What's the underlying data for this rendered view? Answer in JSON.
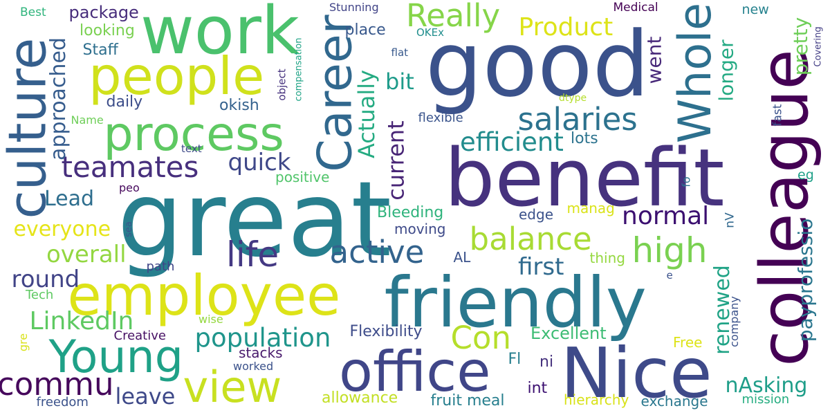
{
  "words": [
    {
      "text": "benefit",
      "color": "#46327e"
    },
    {
      "text": "great",
      "color": "#277f8e"
    },
    {
      "text": "good",
      "color": "#3b528b"
    },
    {
      "text": "friendly",
      "color": "#2a788e"
    },
    {
      "text": "colleague",
      "color": "#440154"
    },
    {
      "text": "work",
      "color": "#4ac16d"
    },
    {
      "text": "people",
      "color": "#d0e11c"
    },
    {
      "text": "employee",
      "color": "#dde318"
    },
    {
      "text": "Nice",
      "color": "#3e4a89"
    },
    {
      "text": "office",
      "color": "#404688"
    },
    {
      "text": "culture",
      "color": "#355f8d"
    },
    {
      "text": "process",
      "color": "#5ec962"
    },
    {
      "text": "Career",
      "color": "#31688e"
    },
    {
      "text": "Young",
      "color": "#1fa187"
    },
    {
      "text": "Whole",
      "color": "#2d708e"
    },
    {
      "text": "view",
      "color": "#c8e020"
    },
    {
      "text": "teamates",
      "color": "#472f7d"
    },
    {
      "text": "salaries",
      "color": "#2c728e"
    },
    {
      "text": "active",
      "color": "#33638d"
    },
    {
      "text": "balance",
      "color": "#a8db34"
    },
    {
      "text": "life",
      "color": "#443983"
    },
    {
      "text": "high",
      "color": "#7ad151"
    },
    {
      "text": "Really",
      "color": "#86d549"
    },
    {
      "text": "efficient",
      "color": "#228c8d"
    },
    {
      "text": "commu",
      "color": "#46085c"
    },
    {
      "text": "Con",
      "color": "#b5de2b"
    },
    {
      "text": "population",
      "color": "#1f958b"
    },
    {
      "text": "LinkedIn",
      "color": "#5ec962"
    },
    {
      "text": "Product",
      "color": "#dde318"
    },
    {
      "text": "Actually",
      "color": "#25ab82"
    },
    {
      "text": "current",
      "color": "#482576"
    },
    {
      "text": "approached",
      "color": "#365c8d"
    },
    {
      "text": "everyone",
      "color": "#e5e419"
    },
    {
      "text": "overall",
      "color": "#93d741"
    },
    {
      "text": "round",
      "color": "#414487"
    },
    {
      "text": "quick",
      "color": "#3f4889"
    },
    {
      "text": "normal",
      "color": "#3b0f70"
    },
    {
      "text": "first",
      "color": "#306a8e"
    },
    {
      "text": "leave",
      "color": "#3e4989"
    },
    {
      "text": "nAsking",
      "color": "#1f9e89"
    },
    {
      "text": "renewed",
      "color": "#20a386"
    },
    {
      "text": "longer",
      "color": "#24aa83"
    },
    {
      "text": "pretty",
      "color": "#6ece58"
    },
    {
      "text": "payprofessio",
      "color": "#2a768e"
    },
    {
      "text": "went",
      "color": "#482979"
    },
    {
      "text": "bit",
      "color": "#1e9b8a"
    },
    {
      "text": "Lead",
      "color": "#2e6e8e"
    },
    {
      "text": "Excellent",
      "color": "#3dbc74"
    },
    {
      "text": "Flexibility",
      "color": "#3e4c8a"
    },
    {
      "text": "package",
      "color": "#472d7b"
    },
    {
      "text": "looking",
      "color": "#7ad151"
    },
    {
      "text": "Staff",
      "color": "#2e6f8e"
    },
    {
      "text": "daily",
      "color": "#3d4e8a"
    },
    {
      "text": "okish",
      "color": "#34618d"
    },
    {
      "text": "place",
      "color": "#38588c"
    },
    {
      "text": "allowance",
      "color": "#c2df23"
    },
    {
      "text": "fruit meal",
      "color": "#277f8e"
    },
    {
      "text": "hierarchy",
      "color": "#d8e219"
    },
    {
      "text": "exchange",
      "color": "#2a778e"
    },
    {
      "text": "mission",
      "color": "#26ad81"
    },
    {
      "text": "Bleeding",
      "color": "#2eb37c"
    },
    {
      "text": "edge",
      "color": "#3b528b"
    },
    {
      "text": "manag",
      "color": "#dae319"
    },
    {
      "text": "moving",
      "color": "#3e4a89"
    },
    {
      "text": "AL",
      "color": "#3b528b"
    },
    {
      "text": "thing",
      "color": "#95d840"
    },
    {
      "text": "positive",
      "color": "#50c46a"
    },
    {
      "text": "flexible",
      "color": "#3a548c"
    },
    {
      "text": "lots",
      "color": "#2c738e"
    },
    {
      "text": "stacks",
      "color": "#481a6c"
    },
    {
      "text": "worked",
      "color": "#3b528b"
    },
    {
      "text": "Creative",
      "color": "#471164"
    },
    {
      "text": "wise",
      "color": "#95d840"
    },
    {
      "text": "int",
      "color": "#3b0f70"
    },
    {
      "text": "Fl",
      "color": "#277e8e"
    },
    {
      "text": "ni",
      "color": "#46327e"
    },
    {
      "text": "Free",
      "color": "#dde318"
    },
    {
      "text": "company",
      "color": "#3b528b"
    },
    {
      "text": "freedom",
      "color": "#3b528b"
    },
    {
      "text": "path",
      "color": "#404588"
    },
    {
      "text": "Tech",
      "color": "#5ec962"
    },
    {
      "text": "gre",
      "color": "#d8e219"
    },
    {
      "text": "Name",
      "color": "#6ece58"
    },
    {
      "text": "Best",
      "color": "#2fb47c"
    },
    {
      "text": "text",
      "color": "#3e4a89"
    },
    {
      "text": "peo",
      "color": "#46085c"
    },
    {
      "text": "Stunning",
      "color": "#414487"
    },
    {
      "text": "OKEx",
      "color": "#218e8d"
    },
    {
      "text": "flat",
      "color": "#38598c"
    },
    {
      "text": "object",
      "color": "#46327e"
    },
    {
      "text": "compensation",
      "color": "#20a386"
    },
    {
      "text": "Medical",
      "color": "#440154"
    },
    {
      "text": "new",
      "color": "#26828e"
    },
    {
      "text": "fast",
      "color": "#3b528b"
    },
    {
      "text": "Covering",
      "color": "#433e85"
    },
    {
      "text": "eg",
      "color": "#1fa088"
    },
    {
      "text": "fo",
      "color": "#2c728e"
    },
    {
      "text": "nV",
      "color": "#31688e"
    },
    {
      "text": "dtype",
      "color": "#b5de2b"
    },
    {
      "text": "sea",
      "color": "#3b528b"
    },
    {
      "text": "e",
      "color": "#3b528b"
    }
  ]
}
